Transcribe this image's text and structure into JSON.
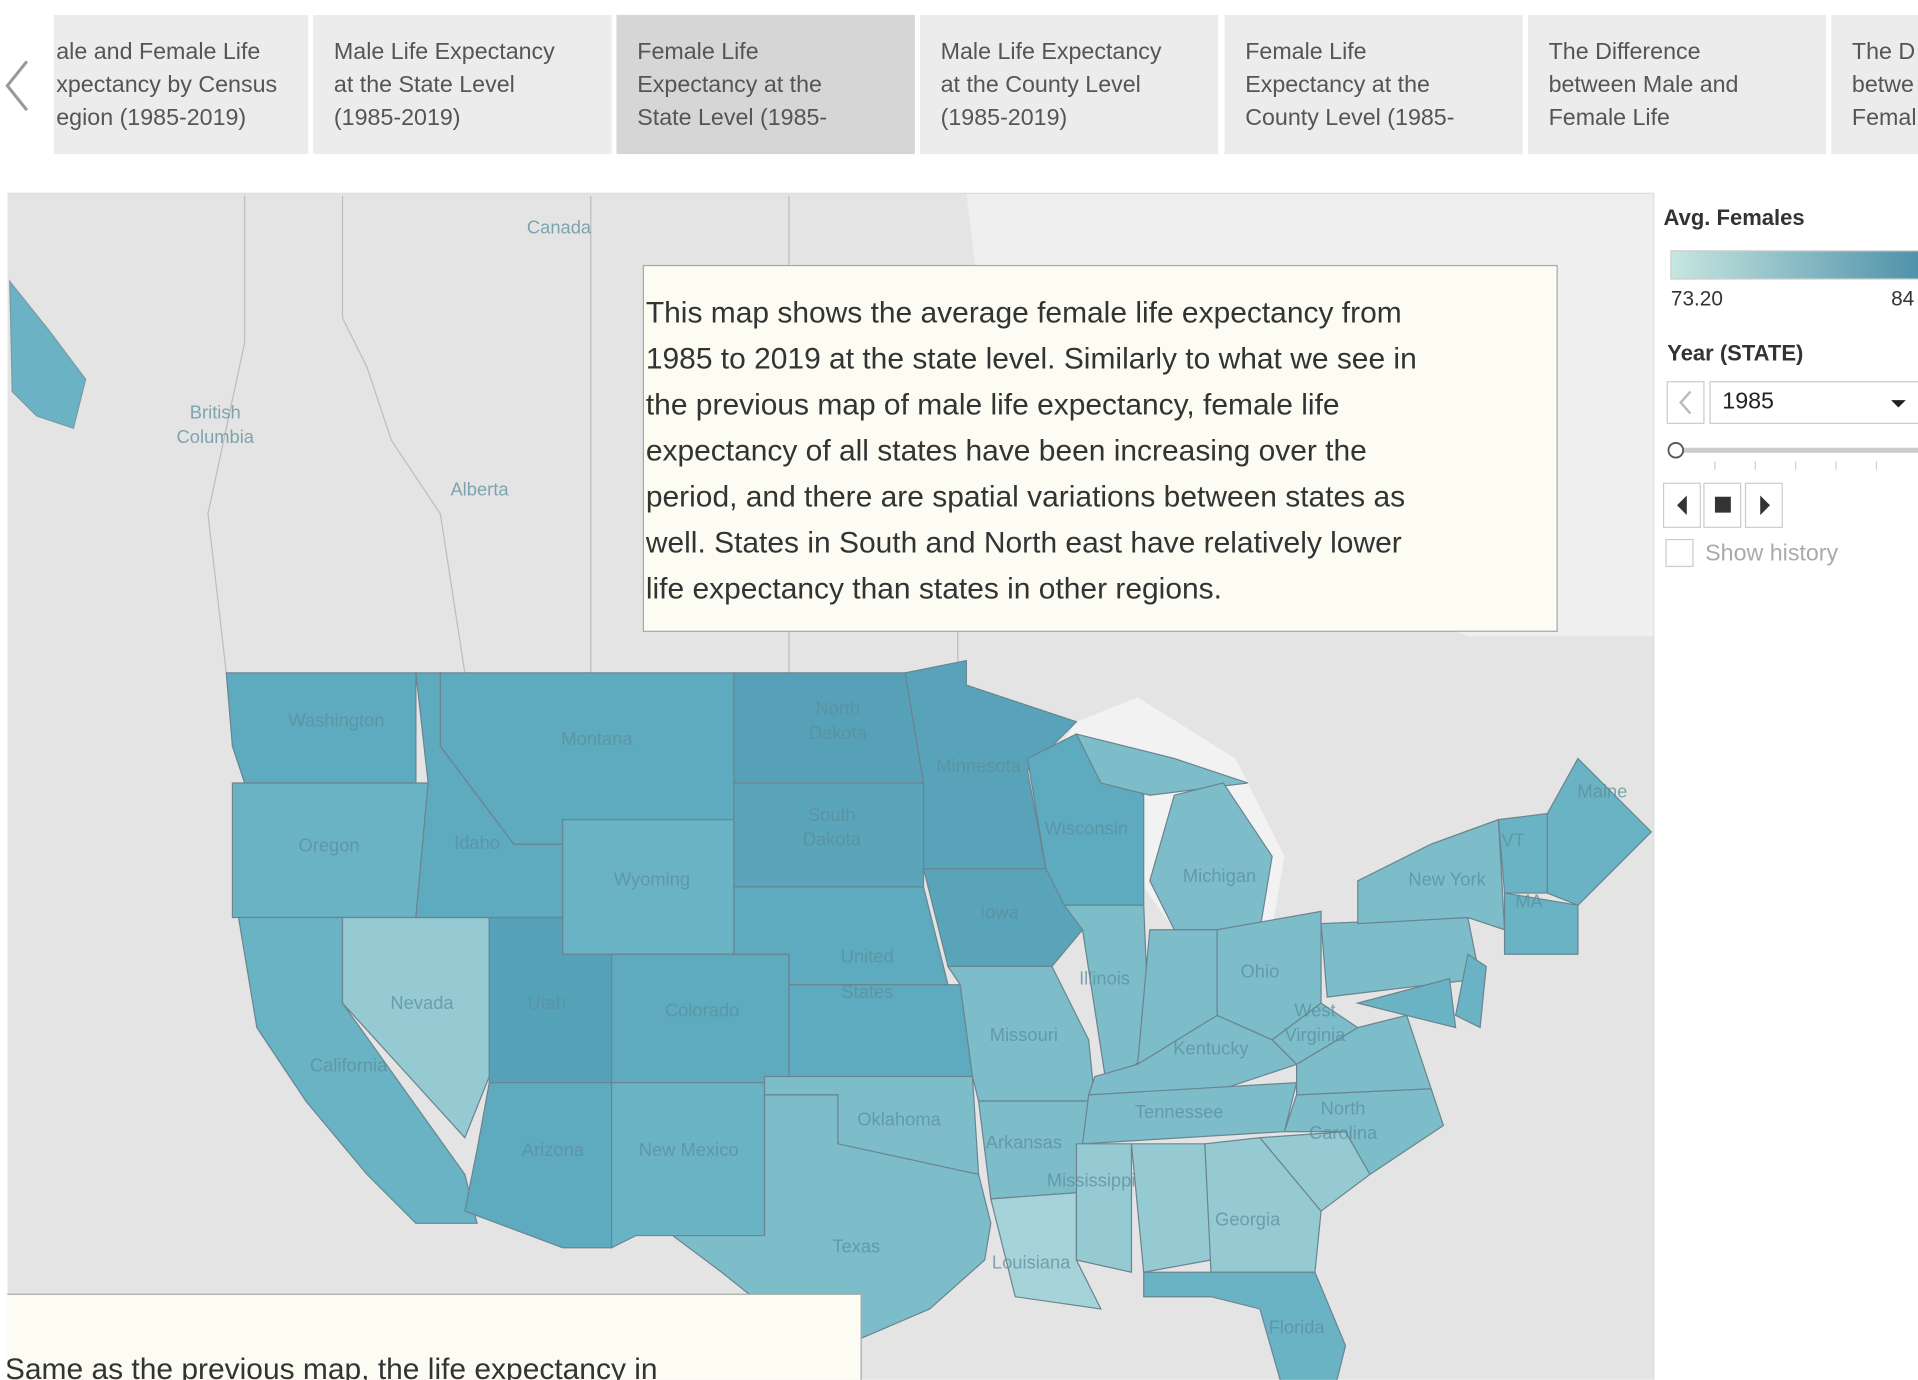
{
  "tabs": [
    {
      "lines": [
        "ale and Female Life",
        "xpectancy by Census",
        "egion (1985-2019)"
      ]
    },
    {
      "lines": [
        "Male Life Expectancy",
        "at the State Level",
        "(1985-2019)"
      ]
    },
    {
      "lines": [
        "Female Life",
        "Expectancy at the",
        "State Level (1985-"
      ]
    },
    {
      "lines": [
        "Male Life Expectancy",
        "at the County Level",
        "(1985-2019)"
      ]
    },
    {
      "lines": [
        "Female Life",
        "Expectancy at the",
        "County Level (1985-"
      ]
    },
    {
      "lines": [
        "The Difference",
        "between Male and",
        "Female Life"
      ]
    },
    {
      "lines": [
        "The D",
        "betwe",
        "Femal"
      ]
    }
  ],
  "map": {
    "labels": [
      [
        "Canada"
      ],
      [
        "British",
        "Columbia"
      ],
      [
        "Alberta"
      ],
      [
        "Washington"
      ],
      [
        "Montana"
      ],
      [
        "North",
        "Dakota"
      ],
      [
        "Minnesota"
      ],
      [
        "South",
        "Dakota"
      ],
      [
        "Oregon"
      ],
      [
        "Idaho"
      ],
      [
        "Wyoming"
      ],
      [
        "Wisconsin"
      ],
      [
        "Michigan"
      ],
      [
        "New York"
      ],
      [
        "VT"
      ],
      [
        "Maine"
      ],
      [
        "MA"
      ],
      [
        "United",
        "States"
      ],
      [
        "Iowa"
      ],
      [
        "Illinois"
      ],
      [
        "Ohio"
      ],
      [
        "Nevada"
      ],
      [
        "Utah"
      ],
      [
        "Colorado"
      ],
      [
        "Missouri"
      ],
      [
        "West",
        "Virginia"
      ],
      [
        "Kentucky"
      ],
      [
        "California"
      ],
      [
        "Tennessee"
      ],
      [
        "North",
        "Carolina"
      ],
      [
        "Oklahoma"
      ],
      [
        "Arkansas"
      ],
      [
        "Arizona"
      ],
      [
        "New Mexico"
      ],
      [
        "Mississippi"
      ],
      [
        "Georgia"
      ],
      [
        "Texas"
      ],
      [
        "Louisiana"
      ],
      [
        "Florida"
      ]
    ]
  },
  "annotations": [
    {
      "lines": [
        "This map shows the average female life expectancy from",
        "1985 to 2019 at the state level. Similarly to what we see in",
        "the previous map of male life expectancy, female life",
        "expectancy of all states have been increasing over the",
        "period, and there are spatial variations between states as",
        "well. States in South and North east have relatively lower",
        "life expectancy than states in other regions."
      ]
    },
    {
      "lines": [
        "Same as the previous map, the life expectancy in"
      ]
    }
  ],
  "legend": {
    "title": "Avg. Females",
    "min_label": "73.20",
    "max_label": "84"
  },
  "filter": {
    "title": "Year (STATE)",
    "value": "1985",
    "history": "Show history"
  }
}
